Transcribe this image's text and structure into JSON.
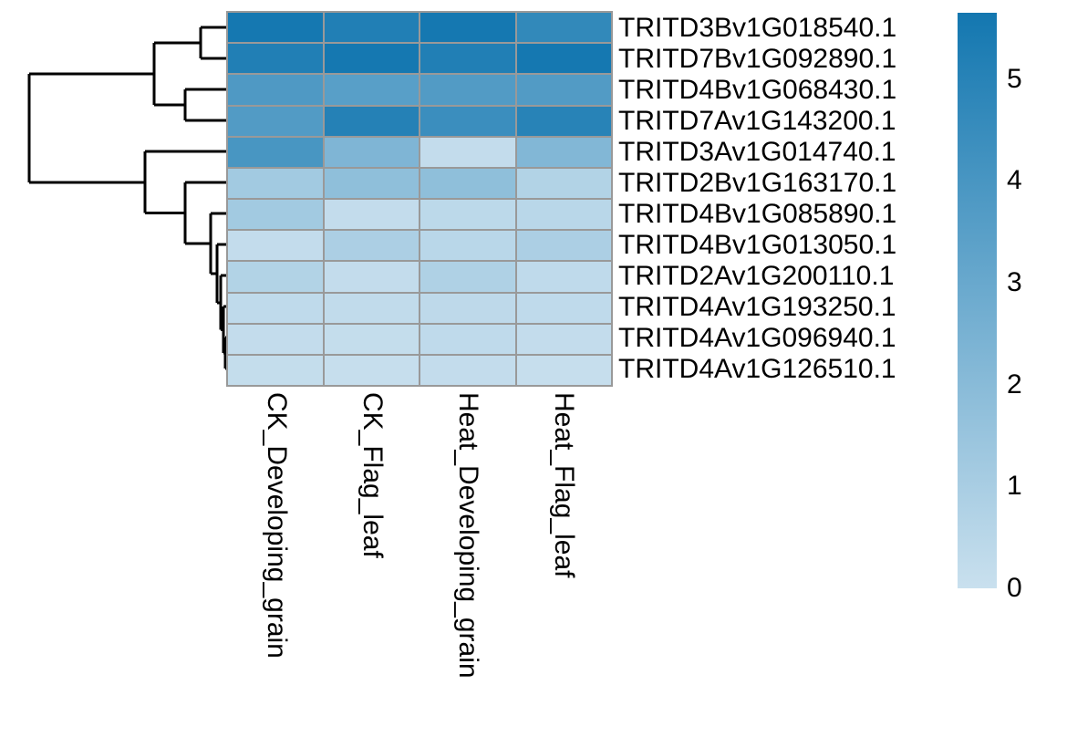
{
  "chart_data": {
    "type": "heatmap",
    "title": "",
    "columns": [
      "CK_Developing_grain",
      "CK_Flag_leaf",
      "Heat_Developing_grain",
      "Heat_Flag_leaf"
    ],
    "rows": [
      "TRITD3Bv1G018540.1",
      "TRITD7Bv1G092890.1",
      "TRITD4Bv1G068430.1",
      "TRITD7Av1G143200.1",
      "TRITD3Av1G014740.1",
      "TRITD2Bv1G163170.1",
      "TRITD4Bv1G085890.1",
      "TRITD4Bv1G013050.1",
      "TRITD2Av1G200110.1",
      "TRITD4Av1G193250.1",
      "TRITD4Av1G096940.1",
      "TRITD4Av1G126510.1"
    ],
    "values": [
      [
        5.6,
        5.2,
        5.6,
        4.7
      ],
      [
        5.2,
        5.6,
        5.2,
        5.6
      ],
      [
        3.8,
        3.5,
        3.7,
        3.7
      ],
      [
        3.7,
        5.1,
        4.4,
        5.0
      ],
      [
        4.0,
        2.3,
        0.2,
        2.2
      ],
      [
        1.2,
        1.8,
        1.8,
        0.7
      ],
      [
        1.2,
        0.2,
        0.4,
        0.5
      ],
      [
        0.2,
        0.9,
        0.5,
        0.9
      ],
      [
        0.7,
        0.2,
        0.8,
        0.3
      ],
      [
        0.3,
        0.25,
        0.35,
        0.3
      ],
      [
        0.2,
        0.15,
        0.3,
        0.2
      ],
      [
        0.15,
        0.1,
        0.2,
        0.1
      ]
    ],
    "colorscale": {
      "min": 0,
      "max": 5.65,
      "color_min": "#c9e0ee",
      "color_max": "#1377b0"
    },
    "legend": {
      "position": "right",
      "tick_values": [
        5,
        4,
        3,
        2,
        1,
        0
      ],
      "tick_labels": [
        "5",
        "4",
        "3",
        "2",
        "1",
        "0"
      ]
    },
    "grid_color": "#999999",
    "text_color": "#000000",
    "dendrogram_color": "#000000",
    "row_dendrogram_segments": [
      [
        220,
        30,
        250,
        30
      ],
      [
        220,
        64,
        250,
        64
      ],
      [
        220,
        30,
        220,
        64
      ],
      [
        169,
        47,
        220,
        47
      ],
      [
        203,
        98,
        250,
        98
      ],
      [
        203,
        132,
        250,
        132
      ],
      [
        203,
        98,
        203,
        132
      ],
      [
        169,
        115,
        203,
        115
      ],
      [
        169,
        47,
        169,
        115
      ],
      [
        32,
        81,
        169,
        81
      ],
      [
        159,
        166,
        250,
        166
      ],
      [
        159,
        166,
        159,
        233.5
      ],
      [
        159,
        233.5,
        203,
        233.5
      ],
      [
        32,
        200,
        159,
        200
      ],
      [
        32,
        81,
        32,
        200
      ],
      [
        203,
        200,
        250,
        200
      ],
      [
        203,
        200,
        203,
        267
      ],
      [
        203,
        267,
        231,
        267
      ],
      [
        231,
        234,
        250,
        234
      ],
      [
        231,
        234,
        231,
        300
      ],
      [
        231,
        300,
        238,
        300
      ],
      [
        238,
        268,
        250,
        268
      ],
      [
        238,
        268,
        238,
        332
      ],
      [
        238,
        332,
        242,
        332
      ],
      [
        242,
        302,
        250,
        302
      ],
      [
        242,
        302,
        242,
        361.5
      ],
      [
        242,
        361.5,
        245,
        361.5
      ],
      [
        245,
        336,
        250,
        336
      ],
      [
        245,
        336,
        245,
        387
      ],
      [
        245,
        387,
        247,
        387
      ],
      [
        247,
        370,
        250,
        370
      ],
      [
        247,
        404,
        250,
        404
      ],
      [
        247,
        370,
        247,
        404
      ]
    ]
  }
}
